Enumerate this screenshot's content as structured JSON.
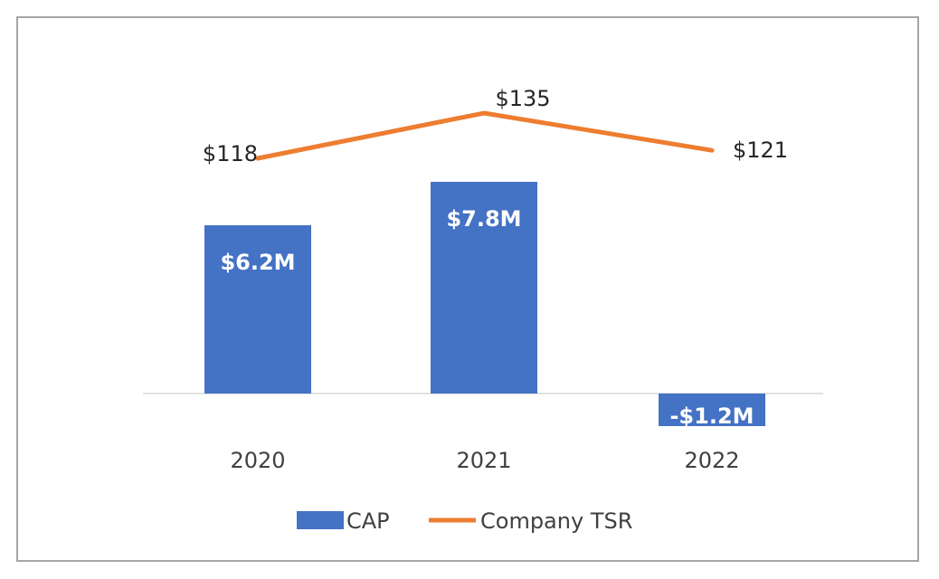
{
  "chart_data": {
    "type": "bar",
    "categories": [
      "2020",
      "2021",
      "2022"
    ],
    "series": [
      {
        "name": "CAP",
        "kind": "bar",
        "values": [
          6.2,
          7.8,
          -1.2
        ],
        "labels": [
          "$6.2M",
          "$7.8M",
          "-$1.2M"
        ],
        "color": "#4472C4"
      },
      {
        "name": "Company TSR",
        "kind": "line",
        "values": [
          118,
          135,
          121
        ],
        "labels": [
          "$118",
          "$135",
          "$121"
        ],
        "color": "#ED7D31"
      }
    ],
    "grid": false,
    "legend": "bottom"
  }
}
